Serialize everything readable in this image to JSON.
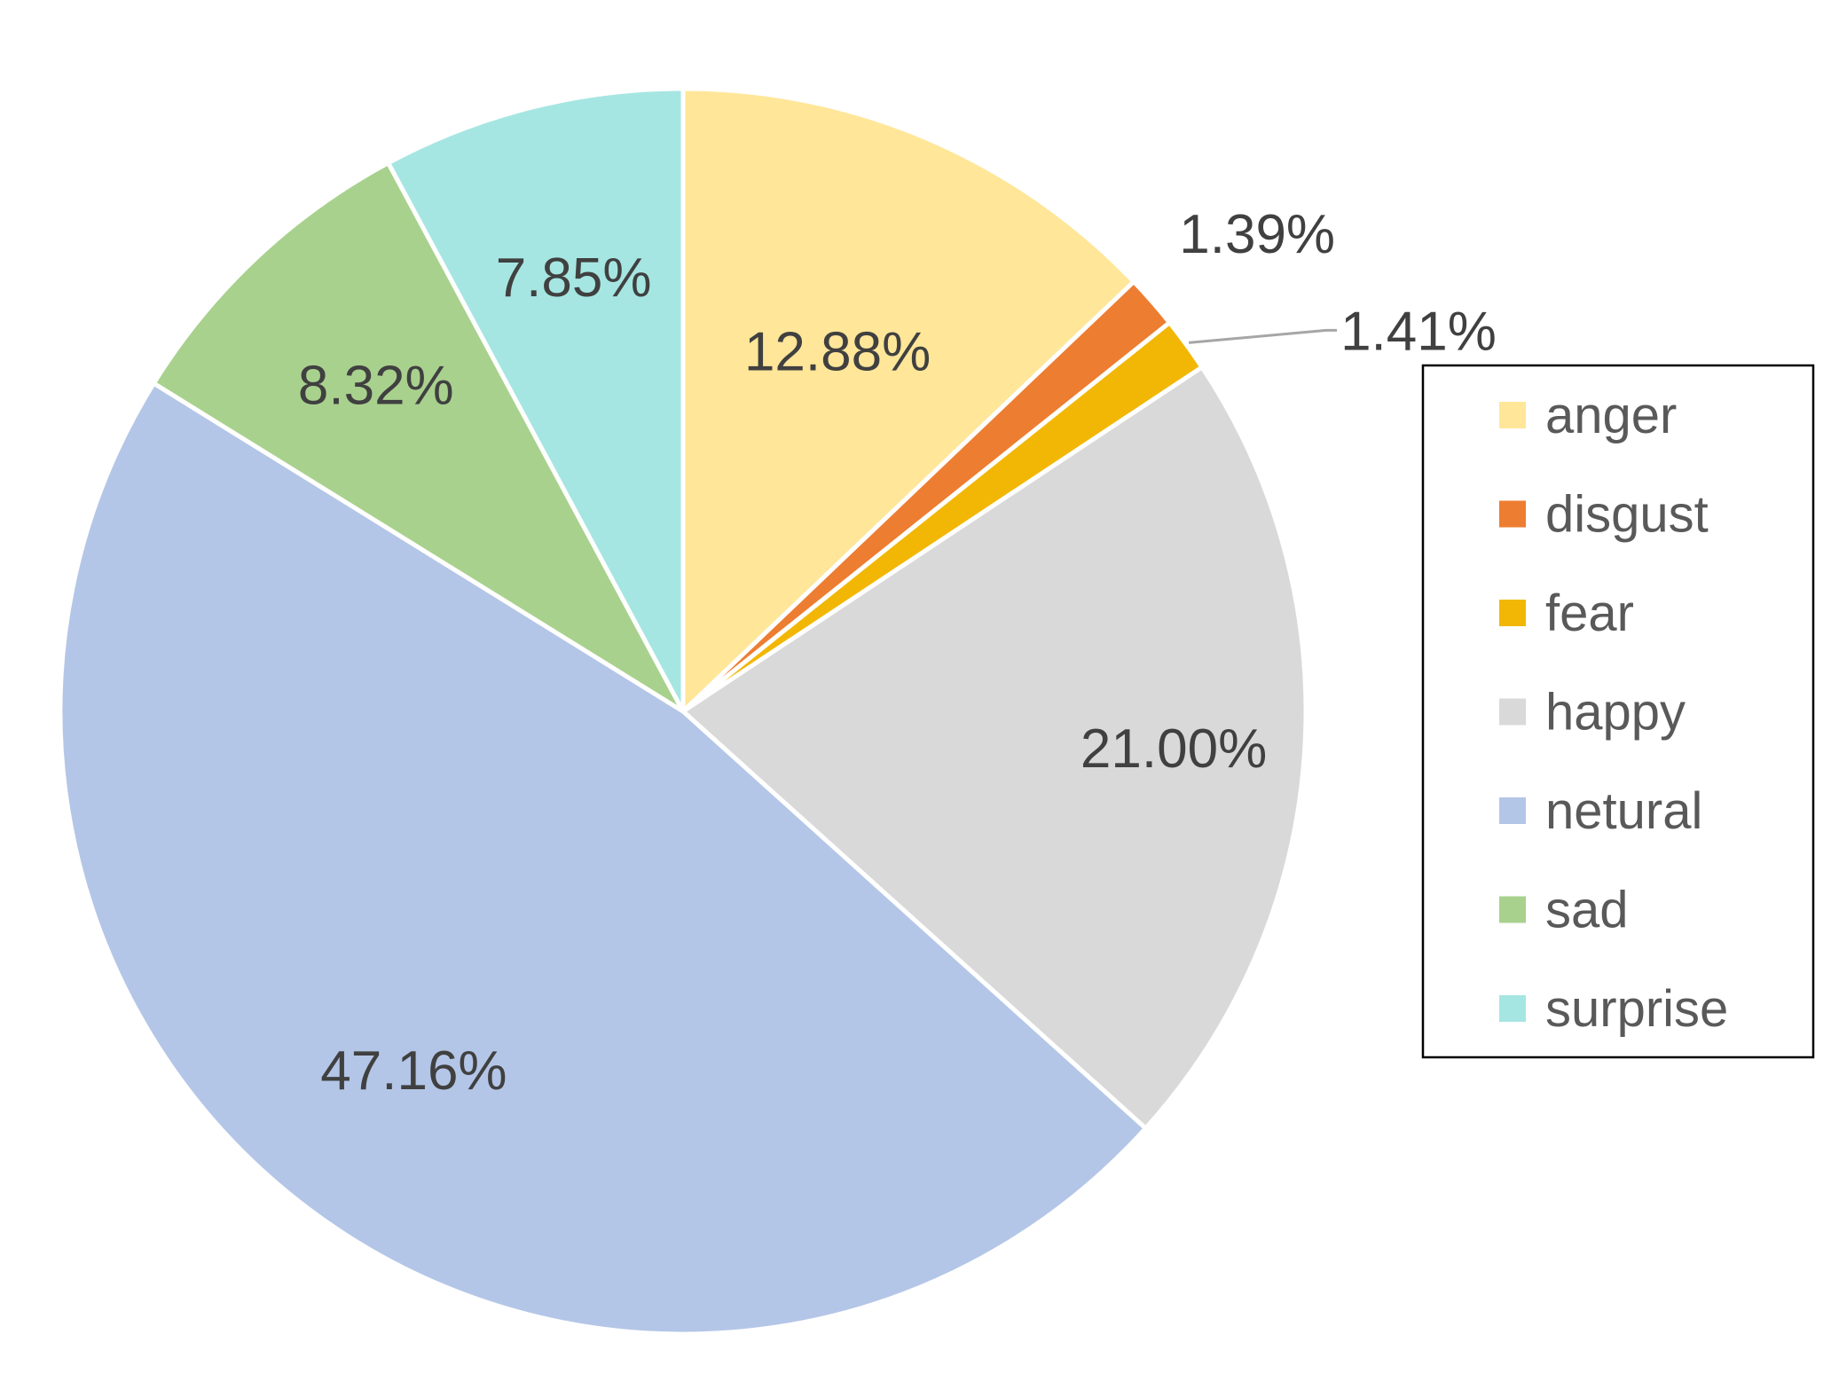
{
  "chart_data": {
    "type": "pie",
    "title": "",
    "categories": [
      "anger",
      "disgust",
      "fear",
      "happy",
      "netural",
      "sad",
      "surprise"
    ],
    "values": [
      12.88,
      1.39,
      1.41,
      21.0,
      47.16,
      8.32,
      7.85
    ],
    "labels": [
      "12.88%",
      "1.39%",
      "1.41%",
      "21.00%",
      "47.16%",
      "8.32%",
      "7.85%"
    ],
    "colors": [
      "#FFE699",
      "#ED7D31",
      "#F2B705",
      "#D9D9D9",
      "#B4C6E7",
      "#A9D18E",
      "#A6E6E2"
    ],
    "start": "12 o'clock",
    "direction": "clockwise",
    "legend": {
      "position": "right",
      "entries": [
        "anger",
        "disgust",
        "fear",
        "happy",
        "netural",
        "sad",
        "surprise"
      ]
    }
  }
}
